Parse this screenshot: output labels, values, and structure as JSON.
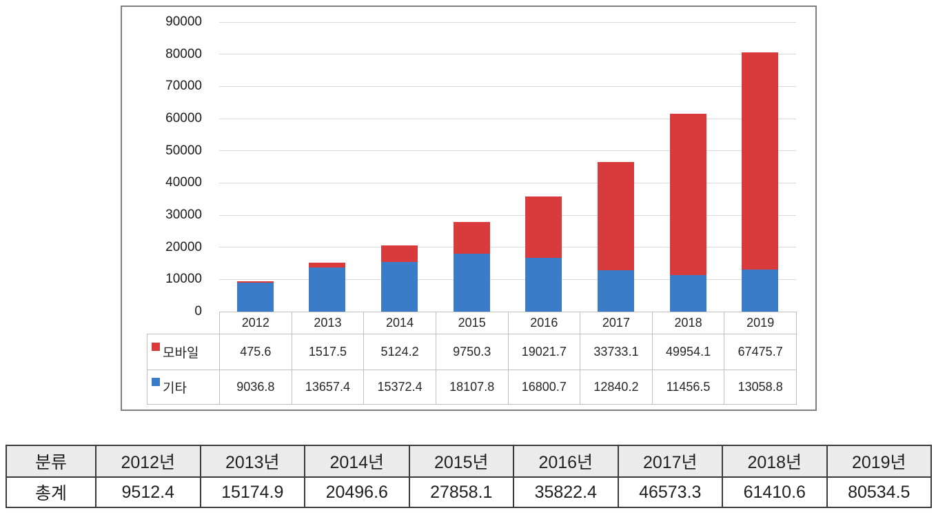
{
  "chart_data": {
    "type": "bar",
    "stacked": true,
    "categories": [
      "2012",
      "2013",
      "2014",
      "2015",
      "2016",
      "2017",
      "2018",
      "2019"
    ],
    "series": [
      {
        "name": "모바일",
        "color": "#d93b3c",
        "values": [
          475.6,
          1517.5,
          5124.2,
          9750.3,
          19021.7,
          33733.1,
          49954.1,
          67475.7
        ]
      },
      {
        "name": "기타",
        "color": "#3a7cc8",
        "values": [
          9036.8,
          13657.4,
          15372.4,
          18107.8,
          16800.7,
          12840.2,
          11456.5,
          13058.8
        ]
      }
    ],
    "stack_order_bottom_to_top": [
      "기타",
      "모바일"
    ],
    "title": "",
    "xlabel": "",
    "ylabel": "",
    "ylim": [
      0,
      90000
    ],
    "ytick_step": 10000,
    "ytick_labels": [
      "0",
      "10000",
      "20000",
      "30000",
      "40000",
      "50000",
      "60000",
      "70000",
      "80000",
      "90000"
    ],
    "grid": true,
    "legend_position": "data-table-left"
  },
  "summary_table": {
    "header": [
      "분류",
      "2012년",
      "2013년",
      "2014년",
      "2015년",
      "2016년",
      "2017년",
      "2018년",
      "2019년"
    ],
    "rows": [
      [
        "총계",
        "9512.4",
        "15174.9",
        "20496.6",
        "27858.1",
        "35822.4",
        "46573.3",
        "61410.6",
        "80534.5"
      ]
    ]
  },
  "colors": {
    "mobile_red": "#d93b3c",
    "other_blue": "#3a7cc8",
    "gridline": "#d9d9d9",
    "chart_table_border": "#bfbfbf",
    "frame_border": "#7f7f7f",
    "summary_border": "#3a3a3a",
    "summary_header_bg": "#ebebeb"
  }
}
